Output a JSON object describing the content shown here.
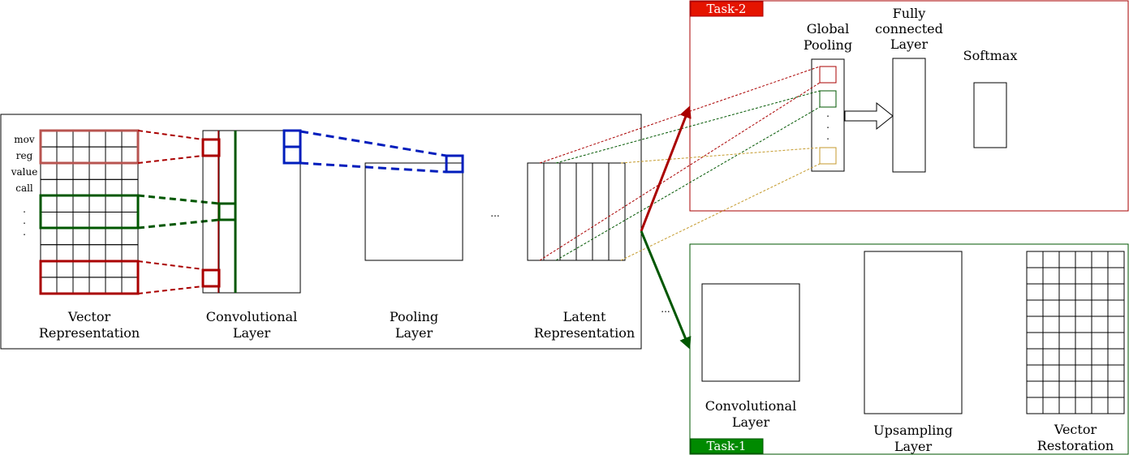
{
  "colors": {
    "red": "#aa0000",
    "light_red": "#b85450",
    "green": "#005700",
    "blue": "#001dbc",
    "gold": "#c49a2c",
    "task2_fill": "#e51400",
    "task1_fill": "#008a00"
  },
  "encoder": {
    "tokens": [
      "mov",
      "reg",
      "value",
      "call"
    ],
    "dots": ".",
    "ellipsis": "...",
    "vector_label": [
      "Vector",
      "Representation"
    ],
    "conv_label": [
      "Convolutional",
      "Layer"
    ],
    "pool_label": [
      "Pooling",
      "Layer"
    ],
    "latent_label": [
      "Latent",
      "Representation"
    ]
  },
  "task2": {
    "tag": "Task-2",
    "global_pooling": [
      "Global",
      "Pooling"
    ],
    "fully_connected": [
      "Fully",
      "connected",
      "Layer"
    ],
    "softmax": "Softmax",
    "dots": "."
  },
  "task1": {
    "tag": "Task-1",
    "ellipsis": "...",
    "conv_label": [
      "Convolutional",
      "Layer"
    ],
    "upsampling_label": [
      "Upsampling",
      "Layer"
    ],
    "restoration_label": [
      "Vector",
      "Restoration"
    ]
  }
}
